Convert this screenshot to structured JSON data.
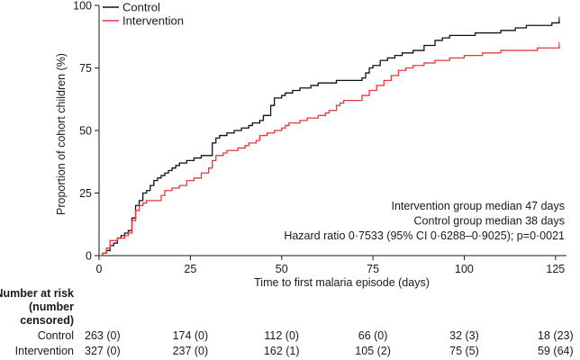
{
  "chart_data": {
    "type": "line",
    "title": "",
    "xlabel": "Time to first malaria episode (days)",
    "ylabel": "Proportion of cohort children (%)",
    "xlim": [
      0,
      128
    ],
    "ylim": [
      0,
      100
    ],
    "x_ticks": [
      0,
      25,
      50,
      75,
      100,
      125
    ],
    "y_ticks": [
      0,
      25,
      50,
      75,
      100
    ],
    "grid": false,
    "legend_position": "top-left",
    "series": [
      {
        "name": "Control",
        "color": "#111111",
        "step": true,
        "points": [
          [
            0,
            0
          ],
          [
            1,
            1
          ],
          [
            2,
            2
          ],
          [
            3,
            4
          ],
          [
            4,
            5
          ],
          [
            5,
            7
          ],
          [
            6,
            8
          ],
          [
            7,
            9
          ],
          [
            8,
            10
          ],
          [
            9,
            15
          ],
          [
            10,
            20
          ],
          [
            11,
            22
          ],
          [
            12,
            25
          ],
          [
            13,
            26
          ],
          [
            14,
            28
          ],
          [
            15,
            30
          ],
          [
            16,
            31
          ],
          [
            17,
            32
          ],
          [
            18,
            33
          ],
          [
            19,
            34
          ],
          [
            20,
            35
          ],
          [
            21,
            36
          ],
          [
            22,
            37
          ],
          [
            24,
            38
          ],
          [
            26,
            39
          ],
          [
            28,
            40
          ],
          [
            30,
            40
          ],
          [
            31,
            45
          ],
          [
            32,
            47
          ],
          [
            33,
            48
          ],
          [
            35,
            49
          ],
          [
            37,
            50
          ],
          [
            39,
            51
          ],
          [
            41,
            52
          ],
          [
            42,
            53
          ],
          [
            44,
            54
          ],
          [
            45,
            56
          ],
          [
            47,
            60
          ],
          [
            48,
            63
          ],
          [
            50,
            64
          ],
          [
            51,
            65
          ],
          [
            53,
            66
          ],
          [
            55,
            67
          ],
          [
            58,
            68
          ],
          [
            60,
            69
          ],
          [
            62,
            69
          ],
          [
            65,
            70
          ],
          [
            67,
            70
          ],
          [
            70,
            70
          ],
          [
            72,
            71
          ],
          [
            73,
            73
          ],
          [
            74,
            75
          ],
          [
            75,
            76
          ],
          [
            77,
            78
          ],
          [
            79,
            79
          ],
          [
            81,
            80
          ],
          [
            83,
            81
          ],
          [
            86,
            82
          ],
          [
            89,
            84
          ],
          [
            92,
            86
          ],
          [
            94,
            87
          ],
          [
            96,
            88
          ],
          [
            100,
            88
          ],
          [
            103,
            89
          ],
          [
            107,
            89
          ],
          [
            110,
            90
          ],
          [
            114,
            91
          ],
          [
            117,
            92
          ],
          [
            120,
            92
          ],
          [
            124,
            93
          ],
          [
            126,
            94
          ]
        ]
      },
      {
        "name": "Intervention",
        "color": "#e8383a",
        "step": true,
        "points": [
          [
            0,
            0
          ],
          [
            1,
            1
          ],
          [
            2,
            3
          ],
          [
            3,
            6
          ],
          [
            5,
            7
          ],
          [
            7,
            8
          ],
          [
            8,
            9
          ],
          [
            9,
            14
          ],
          [
            10,
            18
          ],
          [
            11,
            20
          ],
          [
            12,
            21
          ],
          [
            13,
            22
          ],
          [
            16,
            22
          ],
          [
            17,
            24
          ],
          [
            18,
            26
          ],
          [
            20,
            27
          ],
          [
            22,
            28
          ],
          [
            24,
            30
          ],
          [
            26,
            31
          ],
          [
            28,
            33
          ],
          [
            30,
            35
          ],
          [
            31,
            38
          ],
          [
            32,
            40
          ],
          [
            34,
            41
          ],
          [
            35,
            42
          ],
          [
            38,
            43
          ],
          [
            40,
            44
          ],
          [
            41,
            45
          ],
          [
            43,
            46
          ],
          [
            44,
            48
          ],
          [
            46,
            49
          ],
          [
            48,
            50
          ],
          [
            50,
            51
          ],
          [
            51,
            52
          ],
          [
            52,
            53
          ],
          [
            55,
            54
          ],
          [
            57,
            55
          ],
          [
            60,
            56
          ],
          [
            62,
            57
          ],
          [
            63,
            58
          ],
          [
            65,
            60
          ],
          [
            66,
            61
          ],
          [
            67,
            62
          ],
          [
            70,
            62
          ],
          [
            72,
            64
          ],
          [
            74,
            66
          ],
          [
            76,
            68
          ],
          [
            78,
            70
          ],
          [
            80,
            72
          ],
          [
            82,
            74
          ],
          [
            84,
            75
          ],
          [
            86,
            76
          ],
          [
            89,
            77
          ],
          [
            92,
            78
          ],
          [
            96,
            79
          ],
          [
            100,
            80
          ],
          [
            105,
            81
          ],
          [
            110,
            82
          ],
          [
            115,
            82
          ],
          [
            120,
            83
          ],
          [
            126,
            84
          ]
        ]
      }
    ],
    "annotations": [
      "Intervention group median 47 days",
      "Control group median 38 days",
      "Hazard ratio 0·7533 (95% CI 0·6288–0·9025); p=0·0021"
    ],
    "risk_table": {
      "title_lines": [
        "Number at risk",
        "(number",
        "censored)"
      ],
      "timepoints": [
        0,
        25,
        50,
        75,
        100,
        125
      ],
      "rows": [
        {
          "label": "Control",
          "values": [
            "263 (0)",
            "174 (0)",
            "112 (0)",
            "66 (0)",
            "32 (3)",
            "18 (23)"
          ]
        },
        {
          "label": "Intervention",
          "values": [
            "327 (0)",
            "237 (0)",
            "162 (1)",
            "105 (2)",
            "75 (5)",
            "59 (64)"
          ]
        }
      ]
    }
  }
}
